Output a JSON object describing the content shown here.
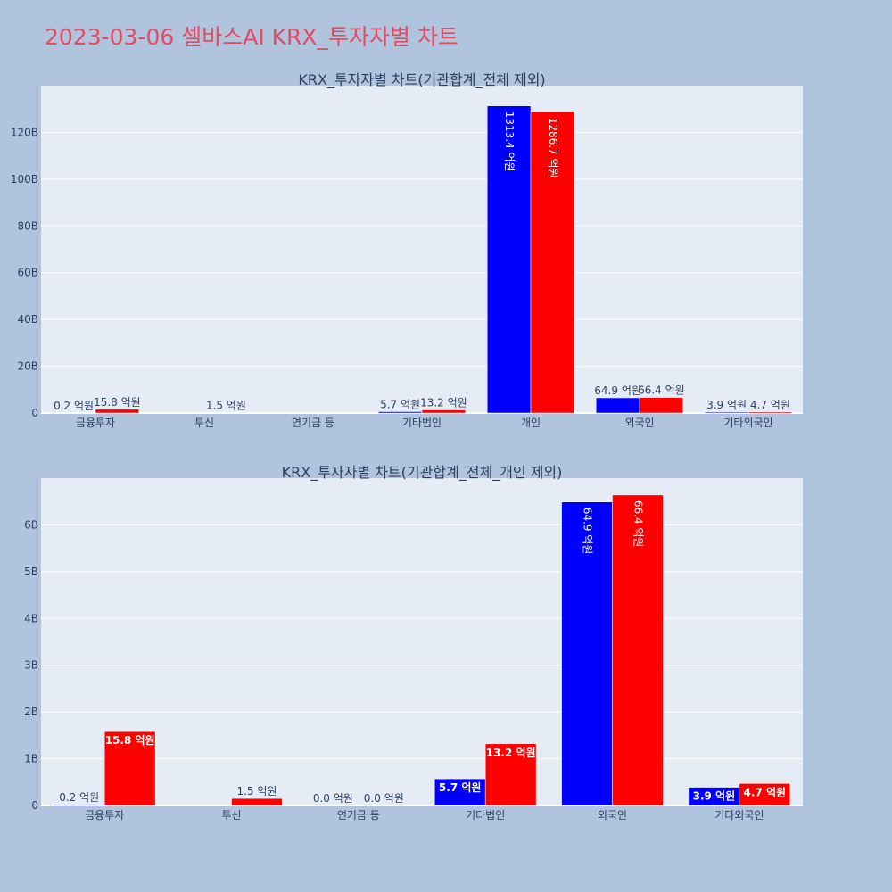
{
  "page": {
    "title": "2023-03-06 셀바스AI KRX_투자자별 차트"
  },
  "colors": {
    "background": "#b0c4de",
    "plot_background": "#e5ecf6",
    "grid": "#ffffff",
    "title": "#e8495f",
    "text": "#2a3f5f",
    "series_blue": "#0000ff",
    "series_red": "#ff0000"
  },
  "chart_data": [
    {
      "type": "bar",
      "title": "KRX_투자자별 차트(기관합계_전체 제외)",
      "categories": [
        "금융투자",
        "투신",
        "연기금 등",
        "기타법인",
        "개인",
        "외국인",
        "기타외국인"
      ],
      "ylim": [
        0,
        140
      ],
      "yticks": [
        0,
        20,
        40,
        60,
        80,
        100,
        120
      ],
      "ytick_labels": [
        "0",
        "20B",
        "40B",
        "60B",
        "80B",
        "100B",
        "120B"
      ],
      "grid": true,
      "legend": "none",
      "series": [
        {
          "color": "#0000ff",
          "values": [
            0.02,
            null,
            null,
            0.57,
            131.34,
            6.49,
            0.39
          ],
          "labels": [
            "0.2 억원",
            "",
            "",
            "5.7 억원",
            "1313.4 억원",
            "64.9 억원",
            "3.9 억원"
          ]
        },
        {
          "color": "#ff0000",
          "values": [
            1.58,
            0.15,
            null,
            1.32,
            128.67,
            6.64,
            0.47
          ],
          "labels": [
            "15.8 억원",
            "1.5 억원",
            "",
            "13.2 억원",
            "1286.7 억원",
            "66.4 억원",
            "4.7 억원"
          ]
        }
      ]
    },
    {
      "type": "bar",
      "title": "KRX_투자자별 차트(기관합계_전체_개인 제외)",
      "categories": [
        "금융투자",
        "투신",
        "연기금 등",
        "기타법인",
        "외국인",
        "기타외국인"
      ],
      "ylim": [
        0,
        7
      ],
      "yticks": [
        0,
        1,
        2,
        3,
        4,
        5,
        6
      ],
      "ytick_labels": [
        "0",
        "1B",
        "2B",
        "3B",
        "4B",
        "5B",
        "6B"
      ],
      "grid": true,
      "legend": "none",
      "series": [
        {
          "color": "#0000ff",
          "values": [
            0.02,
            null,
            0.0,
            0.57,
            6.49,
            0.39
          ],
          "labels": [
            "0.2 억원",
            "",
            "0.0 억원",
            "5.7 억원",
            "64.9 억원",
            "3.9 억원"
          ]
        },
        {
          "color": "#ff0000",
          "values": [
            1.58,
            0.15,
            0.0,
            1.32,
            6.64,
            0.47
          ],
          "labels": [
            "15.8 억원",
            "1.5 억원",
            "0.0 억원",
            "13.2 억원",
            "66.4 억원",
            "4.7 억원"
          ]
        }
      ]
    }
  ]
}
